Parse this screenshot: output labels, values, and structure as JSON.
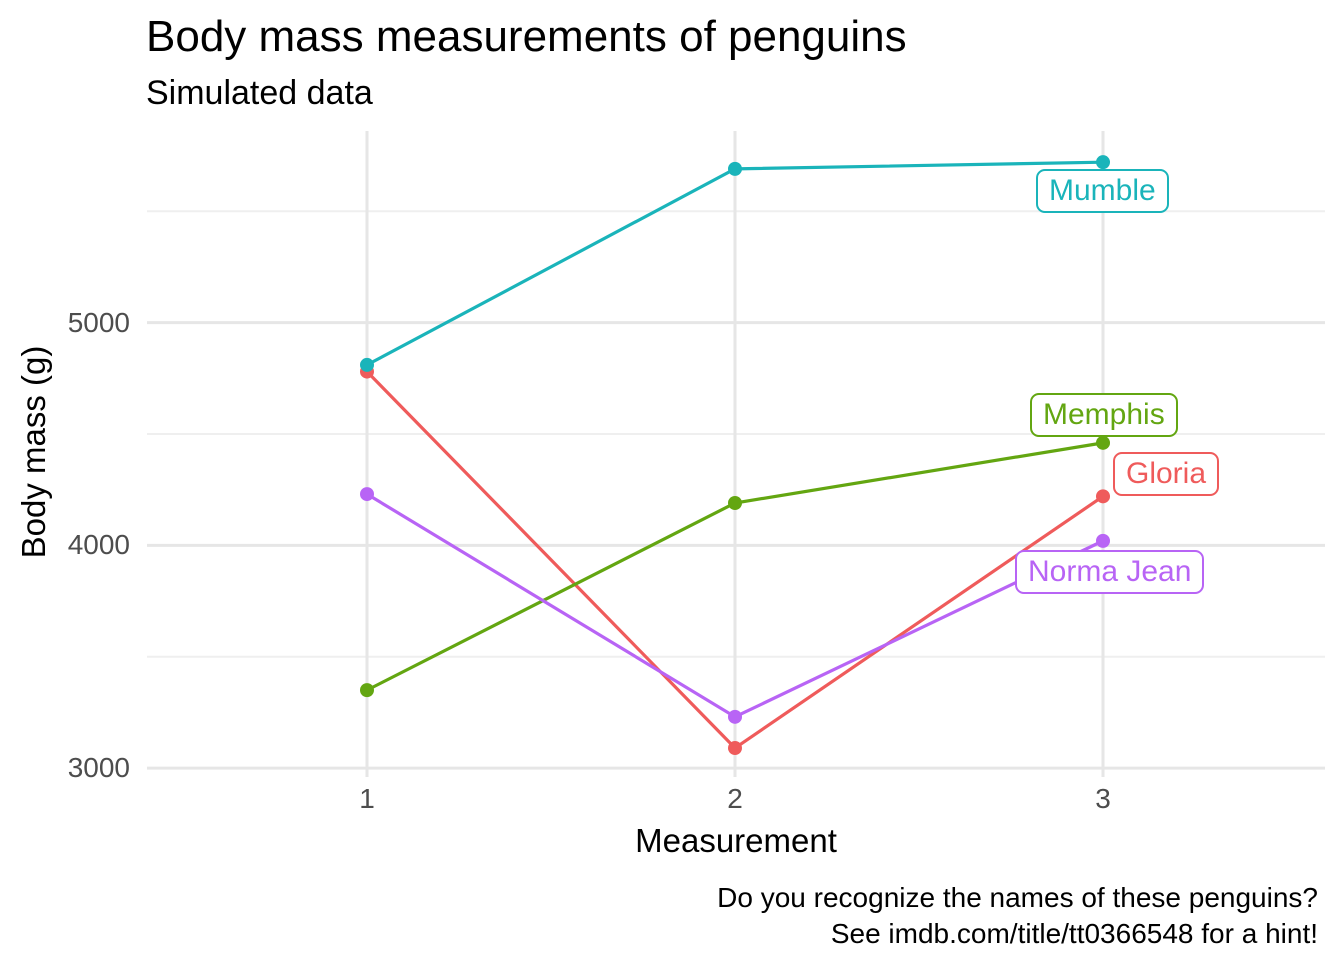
{
  "header": {
    "title": "Body mass measurements of penguins",
    "subtitle": "Simulated data"
  },
  "caption": {
    "line1": "Do you recognize the names of these penguins?",
    "line2": "See imdb.com/title/tt0366548 for a hint!"
  },
  "chart_data": {
    "type": "line",
    "title": "Body mass measurements of penguins",
    "subtitle": "Simulated data",
    "xlabel": "Measurement",
    "ylabel": "Body mass (g)",
    "x": [
      1,
      2,
      3
    ],
    "x_tick_labels": [
      "1",
      "2",
      "3"
    ],
    "y_tick_values": [
      3000,
      4000,
      5000
    ],
    "y_tick_labels": [
      "3000",
      "4000",
      "5000"
    ],
    "ylim": [
      2960,
      5860
    ],
    "xlim": [
      0.4,
      3.6
    ],
    "grid": {
      "major_y": [
        3000,
        4000,
        5000
      ],
      "minor_y": [
        3500,
        4500,
        5500
      ],
      "major_x": [
        1,
        2,
        3
      ]
    },
    "legend_position": "direct-labels",
    "background": "#ffffff",
    "grid_major_color": "#E6E6E6",
    "grid_minor_color": "#EFEFEF",
    "tick_text_color": "#4D4D4D",
    "series": [
      {
        "name": "Gloria",
        "color": "#EF5B5B",
        "values": [
          4780,
          3090,
          4220
        ]
      },
      {
        "name": "Memphis",
        "color": "#63A611",
        "values": [
          3350,
          4190,
          4460
        ]
      },
      {
        "name": "Mumble",
        "color": "#1AB4BA",
        "values": [
          4810,
          5690,
          5720
        ]
      },
      {
        "name": "Norma Jean",
        "color": "#B864F5",
        "values": [
          4230,
          3230,
          4020
        ]
      }
    ]
  }
}
